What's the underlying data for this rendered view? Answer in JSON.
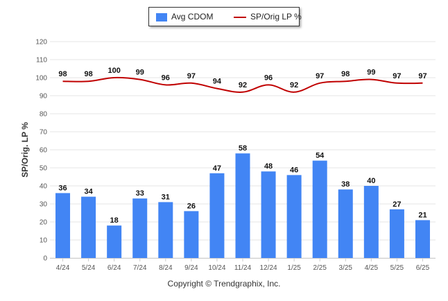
{
  "copyright": "Copyright © Trendgraphix, Inc.",
  "colors": {
    "bar": "#4285f4",
    "line": "#c00000",
    "grid": "#e6e6e6",
    "axis_text": "#555555",
    "label_text": "#111111"
  },
  "chart_data": {
    "type": "bar",
    "categories": [
      "4/24",
      "5/24",
      "6/24",
      "7/24",
      "8/24",
      "9/24",
      "10/24",
      "11/24",
      "12/24",
      "1/25",
      "2/25",
      "3/25",
      "4/25",
      "5/25",
      "6/25"
    ],
    "series": [
      {
        "name": "Avg CDOM",
        "type": "bar",
        "values": [
          36,
          34,
          18,
          33,
          31,
          26,
          47,
          58,
          48,
          46,
          54,
          38,
          40,
          27,
          21
        ]
      },
      {
        "name": "SP/Orig LP %",
        "type": "line",
        "values": [
          98,
          98,
          100,
          99,
          96,
          97,
          94,
          92,
          96,
          92,
          97,
          98,
          99,
          97,
          97
        ]
      }
    ],
    "ylabel": "SP/Orig. LP %",
    "ylim": [
      0,
      120
    ],
    "yticks": [
      0,
      10,
      20,
      30,
      40,
      50,
      60,
      70,
      80,
      90,
      100,
      110,
      120
    ],
    "grid": true,
    "legend_position": "top-center"
  }
}
